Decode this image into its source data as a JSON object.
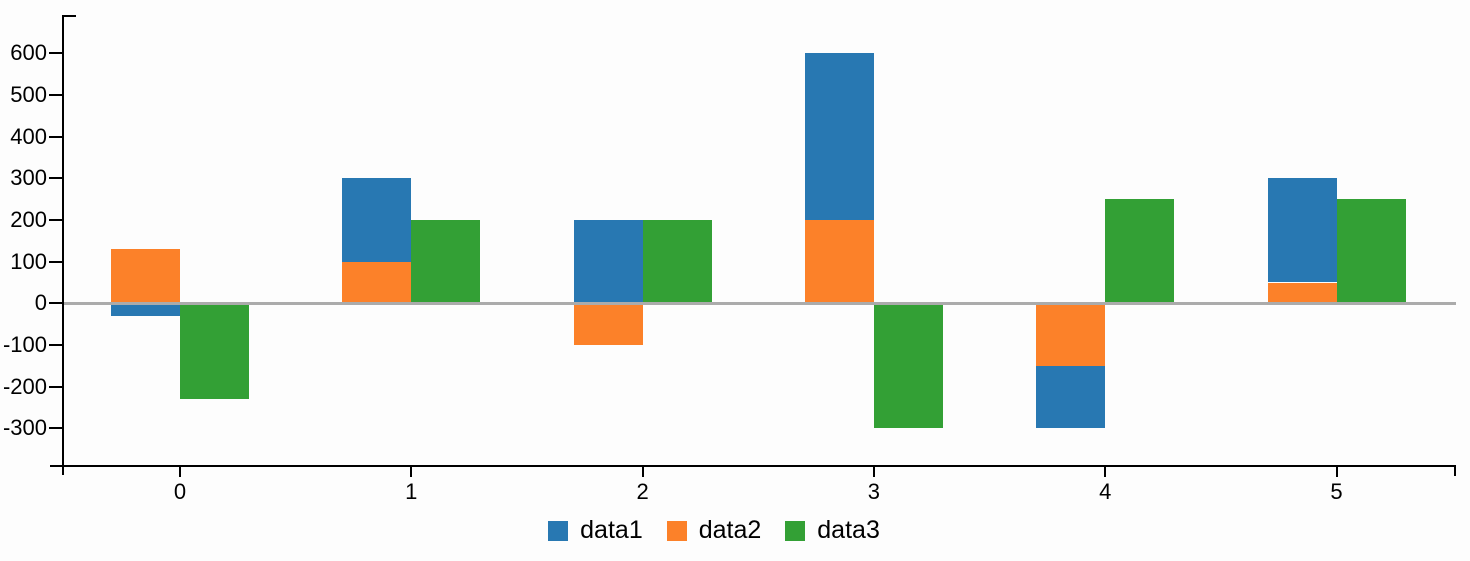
{
  "chart_data": {
    "type": "bar",
    "x": [
      0,
      1,
      2,
      3,
      4,
      5
    ],
    "x_ticks": [
      "0",
      "1",
      "2",
      "3",
      "4",
      "5"
    ],
    "y_ticks": [
      600,
      500,
      400,
      300,
      200,
      100,
      0,
      -100,
      -200,
      -300
    ],
    "ylim": [
      -390,
      690
    ],
    "series": [
      {
        "name": "data1",
        "color": "#2878b2",
        "stack": "A",
        "values": [
          -30,
          200,
          200,
          400,
          -150,
          250
        ]
      },
      {
        "name": "data2",
        "color": "#fc8129",
        "stack": "A",
        "values": [
          130,
          100,
          -100,
          200,
          -150,
          50
        ]
      },
      {
        "name": "data3",
        "color": "#33a035",
        "stack": null,
        "values": [
          -230,
          200,
          200,
          -300,
          250,
          250
        ]
      }
    ],
    "stacking_note": "data2 is drawn from zero; data1 is stacked beyond data2 when both share a sign, otherwise from zero; data3 is a separate bar to the right of the stacked pair",
    "title": "",
    "xlabel": "",
    "ylabel": "",
    "grid": false,
    "legend_position": "bottom-center",
    "axis_color": "#000000",
    "zero_line_color": "#ababab"
  }
}
